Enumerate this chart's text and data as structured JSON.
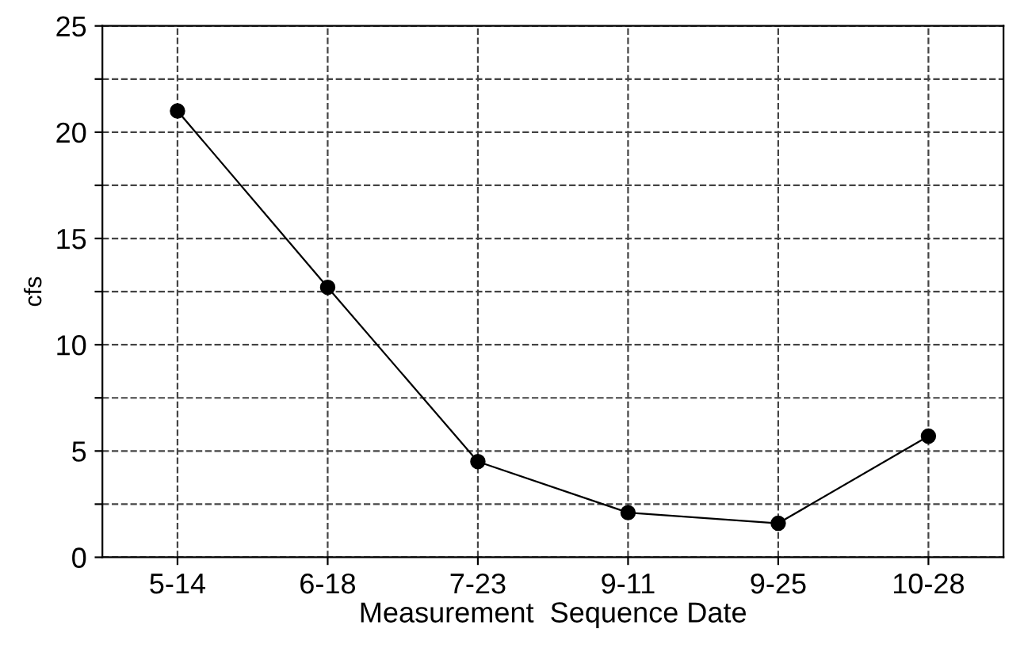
{
  "chart_data": {
    "type": "line",
    "xlabel": "Measurement  Sequence Date",
    "ylabel": "cfs",
    "categories": [
      "5-14",
      "6-18",
      "7-23",
      "9-11",
      "9-25",
      "10-28"
    ],
    "values": [
      21,
      12.7,
      4.5,
      2.1,
      1.6,
      5.7
    ],
    "color": "#000000",
    "marker": "circle",
    "line_style": "solid",
    "ylim": [
      0,
      25
    ],
    "yticks": [
      0,
      {
        "value": 2.5,
        "label": null
      },
      5,
      {
        "value": 7.5,
        "label": null
      },
      10,
      {
        "value": 12.5,
        "label": null
      },
      15,
      {
        "value": 17.5,
        "label": null
      },
      20,
      {
        "value": 22.5,
        "label": null
      },
      25
    ],
    "grid": true
  }
}
